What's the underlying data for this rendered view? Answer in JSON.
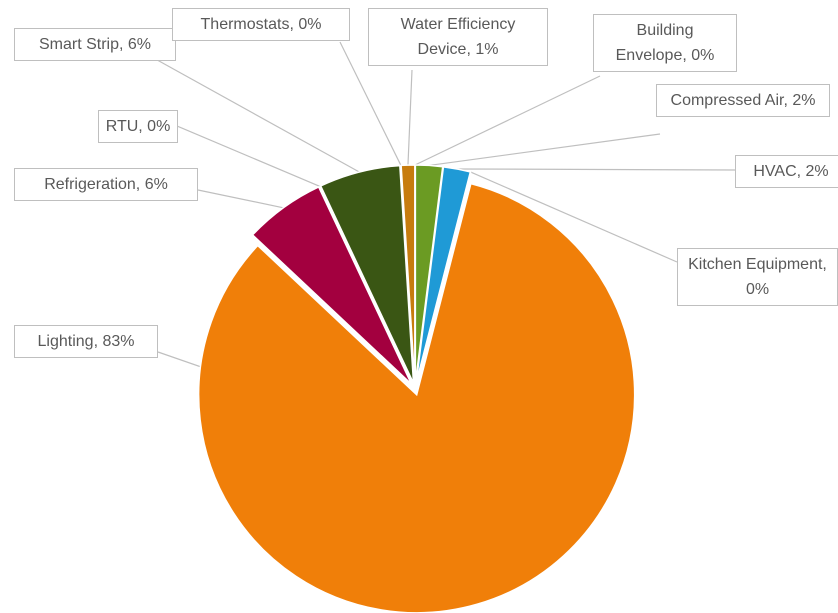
{
  "chart_data": {
    "type": "pie",
    "categories": [
      "Building Envelope",
      "Compressed Air",
      "HVAC",
      "Kitchen Equipment",
      "Lighting",
      "Refrigeration",
      "RTU",
      "Smart Strip",
      "Thermostats",
      "Water Efficiency Device"
    ],
    "values": [
      0,
      2,
      2,
      0,
      83,
      6,
      0,
      6,
      0,
      1
    ],
    "value_labels": [
      "0%",
      "2%",
      "2%",
      "0%",
      "83%",
      "6%",
      "0%",
      "6%",
      "0%",
      "1%"
    ],
    "colors": [
      "#7f7f7f",
      "#6b9b23",
      "#1f9ad6",
      "#5b5b5b",
      "#f07f09",
      "#a3003f",
      "#264478",
      "#3a5614",
      "#9e480e",
      "#c77c0e"
    ],
    "exploded": true
  }
}
